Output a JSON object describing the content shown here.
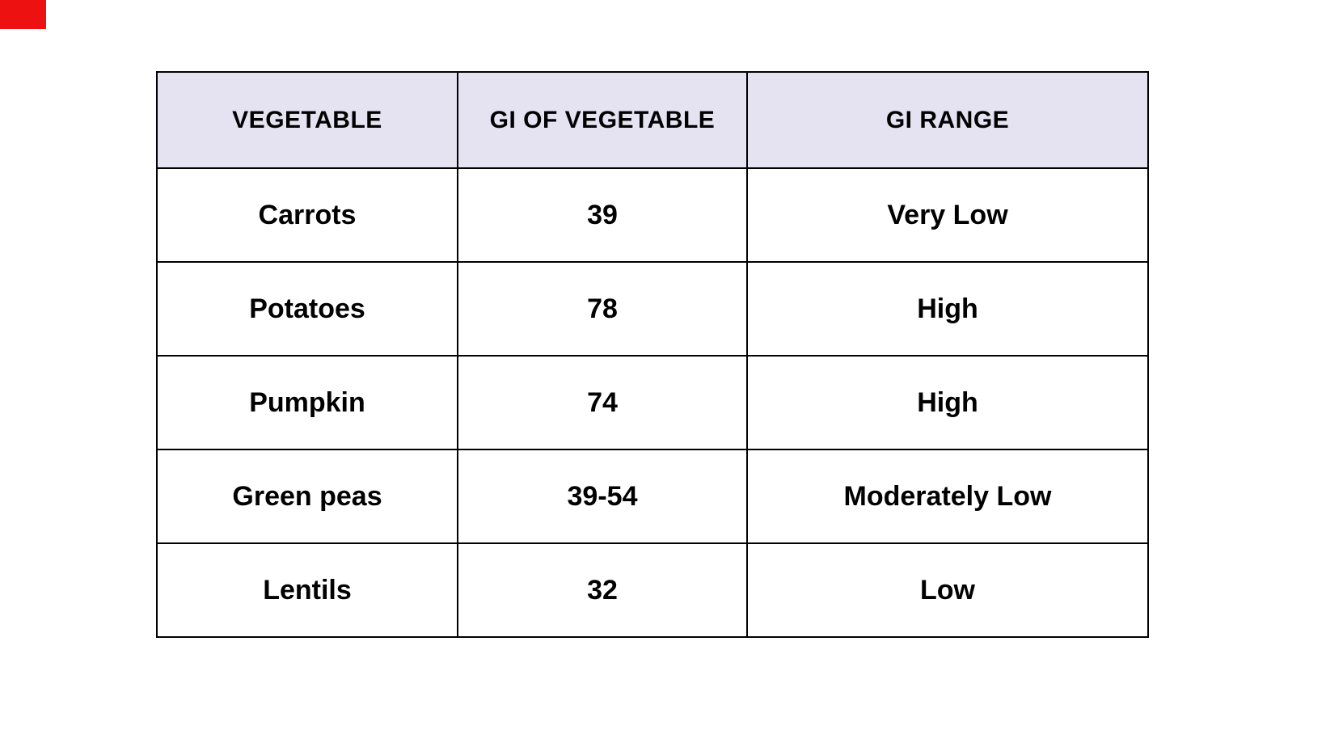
{
  "corner_marker": {
    "color": "#ee1111"
  },
  "chart_data": {
    "type": "table",
    "title": "",
    "columns": [
      "VEGETABLE",
      "GI OF VEGETABLE",
      "GI RANGE"
    ],
    "rows": [
      [
        "Carrots",
        "39",
        "Very Low"
      ],
      [
        "Potatoes",
        "78",
        "High"
      ],
      [
        "Pumpkin",
        "74",
        "High"
      ],
      [
        "Green peas",
        "39-54",
        "Moderately Low"
      ],
      [
        "Lentils",
        "32",
        "Low"
      ]
    ],
    "layout": {
      "header_bg": "#e5e2f1",
      "row_bg": "#ffffff",
      "border_color": "#000000",
      "text_color": "#000000",
      "page_bg": "#ffffff"
    }
  }
}
